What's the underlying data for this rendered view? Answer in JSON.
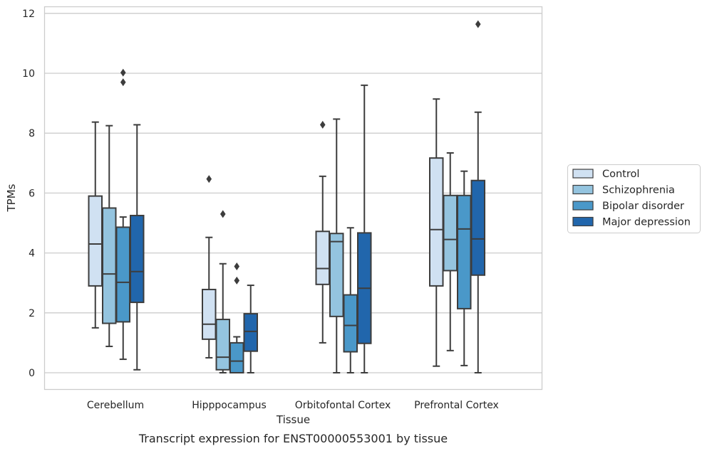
{
  "chart_data": {
    "type": "boxplot",
    "title": "",
    "caption": "Transcript expression for ENST00000553001 by tissue",
    "xlabel": "Tissue",
    "ylabel": "TPMs",
    "ylim": [
      -0.55,
      12.22
    ],
    "yticks": [
      "0",
      "2",
      "4",
      "6",
      "8",
      "10",
      "12"
    ],
    "ytick_values": [
      0,
      2,
      4,
      6,
      8,
      10,
      12
    ],
    "grid": true,
    "legend_position": "right",
    "categories": [
      "Cerebellum",
      "Hipppocampus",
      "Orbitofontal Cortex",
      "Prefrontal Cortex"
    ],
    "series": [
      {
        "name": "Control",
        "color": "#d0e1f2",
        "boxes": [
          {
            "whislo": 1.5,
            "q1": 2.9,
            "med": 4.3,
            "q3": 5.9,
            "whishi": 8.37,
            "fliers": []
          },
          {
            "whislo": 0.5,
            "q1": 1.12,
            "med": 1.62,
            "q3": 2.78,
            "whishi": 4.52,
            "fliers": [
              6.47
            ]
          },
          {
            "whislo": 1.0,
            "q1": 2.95,
            "med": 3.48,
            "q3": 4.72,
            "whishi": 6.56,
            "fliers": [
              8.28
            ]
          },
          {
            "whislo": 0.22,
            "q1": 2.9,
            "med": 4.78,
            "q3": 7.17,
            "whishi": 9.14,
            "fliers": []
          }
        ]
      },
      {
        "name": "Schizophrenia",
        "color": "#94c4df",
        "boxes": [
          {
            "whislo": 0.88,
            "q1": 1.65,
            "med": 3.3,
            "q3": 5.5,
            "whishi": 8.25,
            "fliers": []
          },
          {
            "whislo": 0.0,
            "q1": 0.1,
            "med": 0.52,
            "q3": 1.78,
            "whishi": 3.64,
            "fliers": [
              5.3
            ]
          },
          {
            "whislo": 0.0,
            "q1": 1.88,
            "med": 4.38,
            "q3": 4.65,
            "whishi": 8.47,
            "fliers": []
          },
          {
            "whislo": 0.74,
            "q1": 3.41,
            "med": 4.45,
            "q3": 5.92,
            "whishi": 7.34,
            "fliers": []
          }
        ]
      },
      {
        "name": "Bipolar disorder",
        "color": "#4a98c9",
        "boxes": [
          {
            "whislo": 0.45,
            "q1": 1.7,
            "med": 3.02,
            "q3": 4.86,
            "whishi": 5.2,
            "fliers": [
              9.7,
              10.02
            ]
          },
          {
            "whislo": 0.0,
            "q1": 0.0,
            "med": 0.39,
            "q3": 1.0,
            "whishi": 1.2,
            "fliers": [
              3.08,
              3.55
            ]
          },
          {
            "whislo": 0.0,
            "q1": 0.7,
            "med": 1.58,
            "q3": 2.6,
            "whishi": 4.84,
            "fliers": []
          },
          {
            "whislo": 0.24,
            "q1": 2.14,
            "med": 4.8,
            "q3": 5.92,
            "whishi": 6.73,
            "fliers": []
          }
        ]
      },
      {
        "name": "Major depression",
        "color": "#2166ac",
        "boxes": [
          {
            "whislo": 0.1,
            "q1": 2.35,
            "med": 3.38,
            "q3": 5.25,
            "whishi": 8.28,
            "fliers": []
          },
          {
            "whislo": 0.0,
            "q1": 0.72,
            "med": 1.38,
            "q3": 1.97,
            "whishi": 2.92,
            "fliers": []
          },
          {
            "whislo": 0.0,
            "q1": 0.98,
            "med": 2.82,
            "q3": 4.67,
            "whishi": 9.6,
            "fliers": []
          },
          {
            "whislo": 0.0,
            "q1": 3.26,
            "med": 4.47,
            "q3": 6.42,
            "whishi": 8.7,
            "fliers": [
              11.64
            ]
          }
        ]
      }
    ]
  }
}
